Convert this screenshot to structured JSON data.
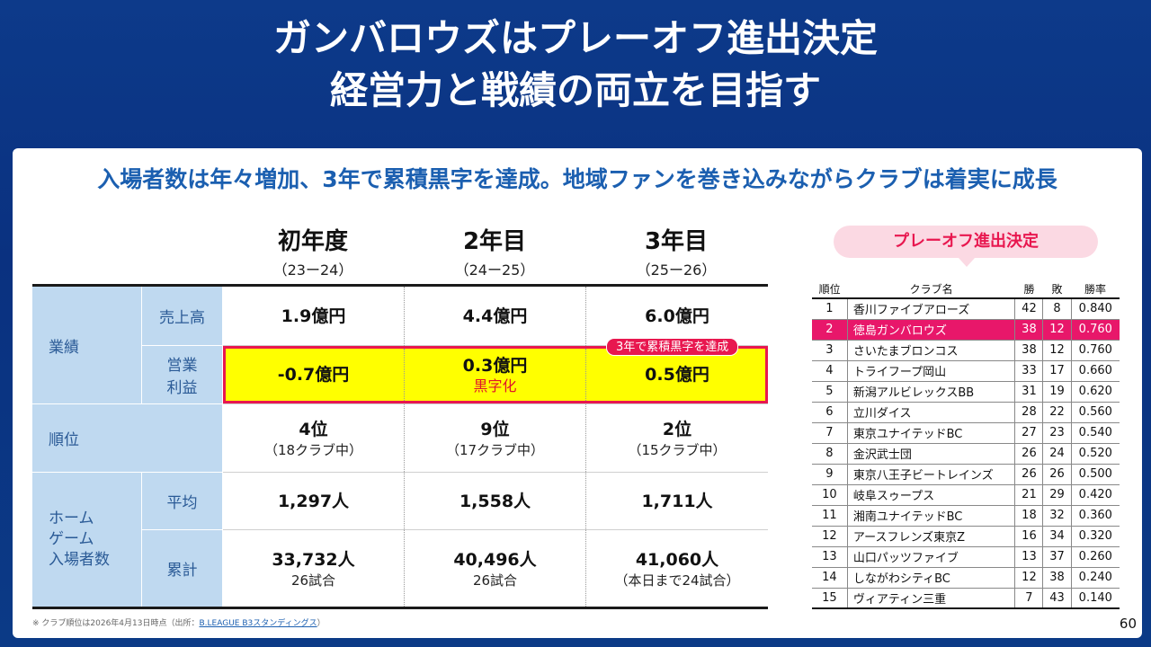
{
  "title": {
    "line1": "ガンバロウズはプレーオフ進出決定",
    "line2": "経営力と戦績の両立を目指す"
  },
  "subtitle": "入場者数は年々増加、3年で累積黒字を達成。地域ファンを巻き込みながらクラブは着実に成長",
  "columns": [
    {
      "year": "初年度",
      "range": "（23ー24）"
    },
    {
      "year": "2年目",
      "range": "（24ー25）"
    },
    {
      "year": "3年目",
      "range": "（25ー26）"
    }
  ],
  "rows": {
    "performance_label": "業績",
    "sales_label": "売上高",
    "operating_label_1": "営業",
    "operating_label_2": "利益",
    "rank_label": "順位",
    "home_label_1": "ホーム",
    "home_label_2": "ゲーム",
    "home_label_3": "入場者数",
    "avg_label": "平均",
    "total_label": "累計"
  },
  "values": {
    "sales": [
      "1.9億円",
      "4.4億円",
      "6.0億円"
    ],
    "operating": [
      "-0.7億円",
      "0.3億円",
      "0.5億円"
    ],
    "operating_note": "黒字化",
    "badge": "3年で累積黒字を達成",
    "rank": [
      "4位",
      "9位",
      "2位"
    ],
    "rank_sub": [
      "（18クラブ中）",
      "（17クラブ中）",
      "（15クラブ中）"
    ],
    "avg": [
      "1,297人",
      "1,558人",
      "1,711人"
    ],
    "total": [
      "33,732人",
      "40,496人",
      "41,060人"
    ],
    "total_sub": [
      "26試合",
      "26試合",
      "（本日まで24試合）"
    ]
  },
  "footnote": {
    "text": "※ クラブ順位は2026年4月13日時点（出所：",
    "link": "B.LEAGUE B3スタンディングス",
    "end": "）"
  },
  "standings": {
    "bubble": "プレーオフ進出決定",
    "headers": [
      "順位",
      "クラブ名",
      "勝",
      "敗",
      "勝率"
    ],
    "rows": [
      [
        "1",
        "香川ファイブアローズ",
        "42",
        "8",
        "0.840"
      ],
      [
        "2",
        "徳島ガンバロウズ",
        "38",
        "12",
        "0.760"
      ],
      [
        "3",
        "さいたまブロンコス",
        "38",
        "12",
        "0.760"
      ],
      [
        "4",
        "トライフープ岡山",
        "33",
        "17",
        "0.660"
      ],
      [
        "5",
        "新潟アルビレックスBB",
        "31",
        "19",
        "0.620"
      ],
      [
        "6",
        "立川ダイス",
        "28",
        "22",
        "0.560"
      ],
      [
        "7",
        "東京ユナイテッドBC",
        "27",
        "23",
        "0.540"
      ],
      [
        "8",
        "金沢武士団",
        "26",
        "24",
        "0.520"
      ],
      [
        "9",
        "東京八王子ビートレインズ",
        "26",
        "26",
        "0.500"
      ],
      [
        "10",
        "岐阜スゥープス",
        "21",
        "29",
        "0.420"
      ],
      [
        "11",
        "湘南ユナイテッドBC",
        "18",
        "32",
        "0.360"
      ],
      [
        "12",
        "アースフレンズ東京Z",
        "16",
        "34",
        "0.320"
      ],
      [
        "13",
        "山口パッツファイブ",
        "13",
        "37",
        "0.260"
      ],
      [
        "14",
        "しながわシティBC",
        "12",
        "38",
        "0.240"
      ],
      [
        "15",
        "ヴィアティン三重",
        "7",
        "43",
        "0.140"
      ]
    ],
    "highlight_row": 1
  },
  "page_number": "60",
  "colors": {
    "background": "#0a3180",
    "accent_blue": "#1b5fb0",
    "highlight_pink": "#e8176a",
    "badge_red": "#e8174f",
    "yellow": "#ffff00",
    "label_blue": "#bfd9f0"
  }
}
